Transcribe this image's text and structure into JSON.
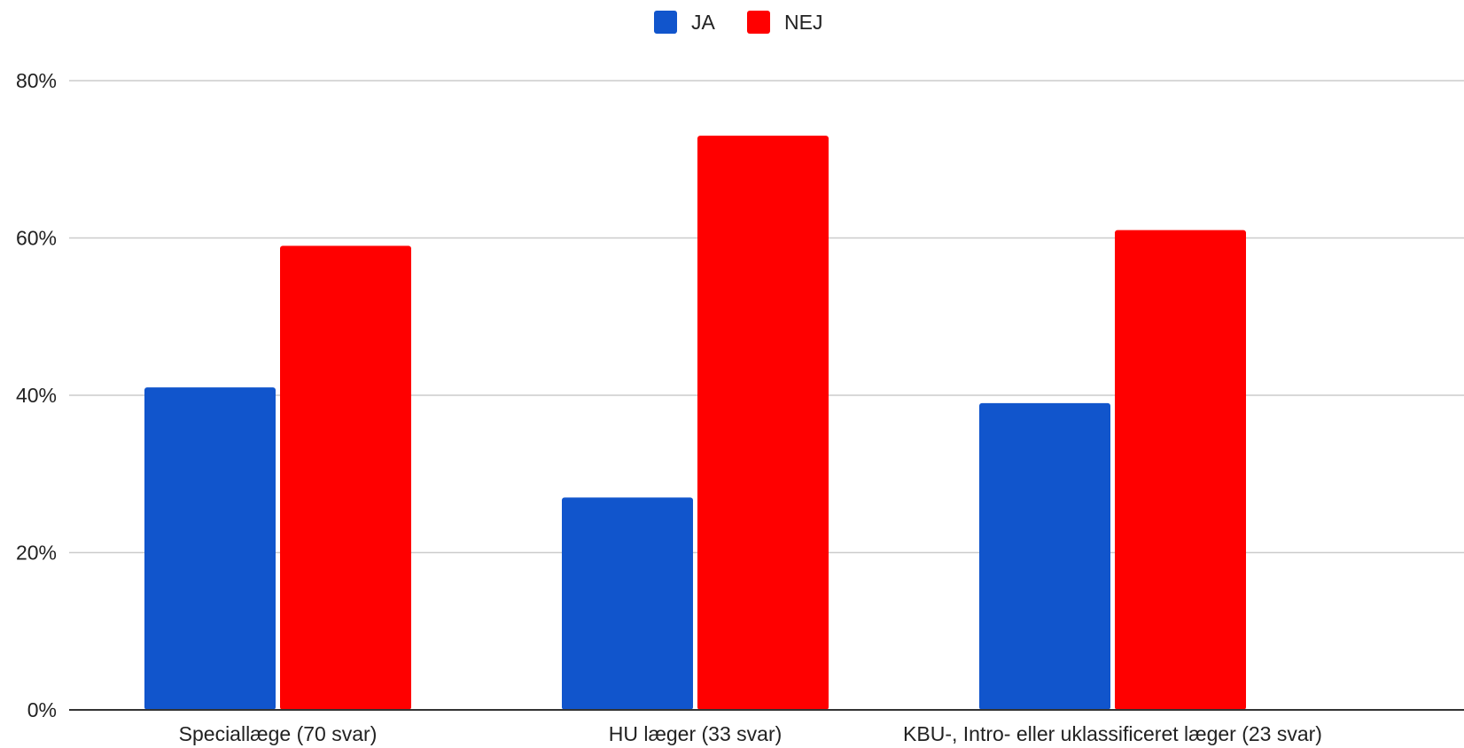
{
  "chart_data": {
    "type": "bar",
    "categories": [
      "Speciallæge (70 svar)",
      "HU læger (33 svar)",
      "KBU-, Intro- eller uklassificeret læger (23 svar)"
    ],
    "series": [
      {
        "name": "JA",
        "color": "#1155cc",
        "values": [
          41,
          27,
          39
        ]
      },
      {
        "name": "NEJ",
        "color": "#ff0000",
        "values": [
          59,
          73,
          61
        ]
      }
    ],
    "yticks": [
      "0%",
      "20%",
      "40%",
      "60%",
      "80%"
    ],
    "ytick_values": [
      0,
      20,
      40,
      60,
      80
    ],
    "ylim": [
      0,
      80
    ],
    "value_format": "percent",
    "grid": true,
    "legend_position": "top-center",
    "title": "",
    "xlabel": "",
    "ylabel": ""
  }
}
